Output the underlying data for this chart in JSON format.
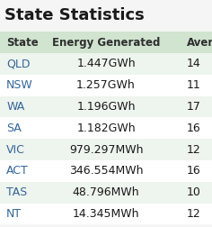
{
  "title": "State Statistics",
  "rows": [
    {
      "state": "QLD",
      "energy": "1.447GWh",
      "average": "14"
    },
    {
      "state": "NSW",
      "energy": "1.257GWh",
      "average": "11"
    },
    {
      "state": "WA",
      "energy": "1.196GWh",
      "average": "17"
    },
    {
      "state": "SA",
      "energy": "1.182GWh",
      "average": "16"
    },
    {
      "state": "VIC",
      "energy": "979.297MWh",
      "average": "12"
    },
    {
      "state": "ACT",
      "energy": "346.554MWh",
      "average": "16"
    },
    {
      "state": "TAS",
      "energy": "48.796MWh",
      "average": "10"
    },
    {
      "state": "NT",
      "energy": "14.345MWh",
      "average": "12"
    }
  ],
  "bg_color": "#f5f5f5",
  "title_color": "#1a1a1a",
  "header_color": "#2e2e2e",
  "state_link_color": "#336699",
  "row_colors": [
    "#eef4ee",
    "#ffffff"
  ],
  "header_bg": "#d0e4d0",
  "font_size_title": 13,
  "font_size_header": 8.5,
  "font_size_data": 9
}
